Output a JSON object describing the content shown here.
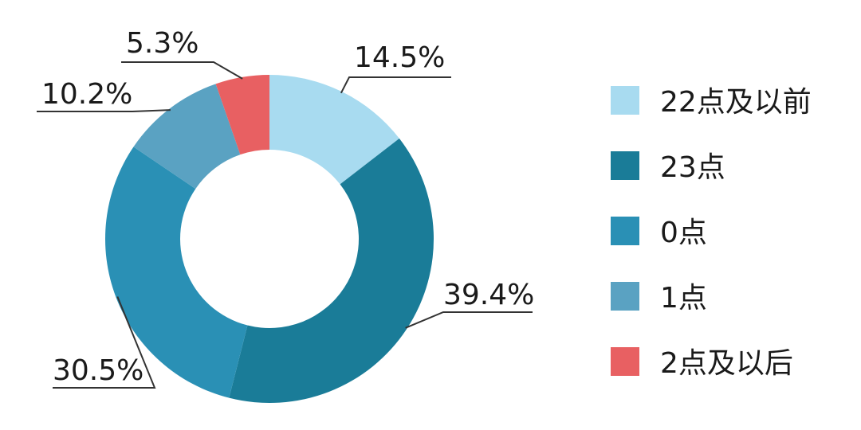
{
  "chart_data": {
    "type": "pie",
    "variant": "donut",
    "categories": [
      "22点及以前",
      "23点",
      "0点",
      "1点",
      "2点及以后"
    ],
    "values": [
      14.5,
      39.4,
      30.5,
      10.2,
      5.3
    ],
    "labels": [
      "14.5%",
      "39.4%",
      "30.5%",
      "10.2%",
      "5.3%"
    ],
    "colors": [
      "#a8dbf0",
      "#1a7c98",
      "#2a90b5",
      "#5aa2c2",
      "#e86062"
    ],
    "start_angle_deg": 0,
    "direction": "clockwise",
    "legend_position": "right"
  }
}
